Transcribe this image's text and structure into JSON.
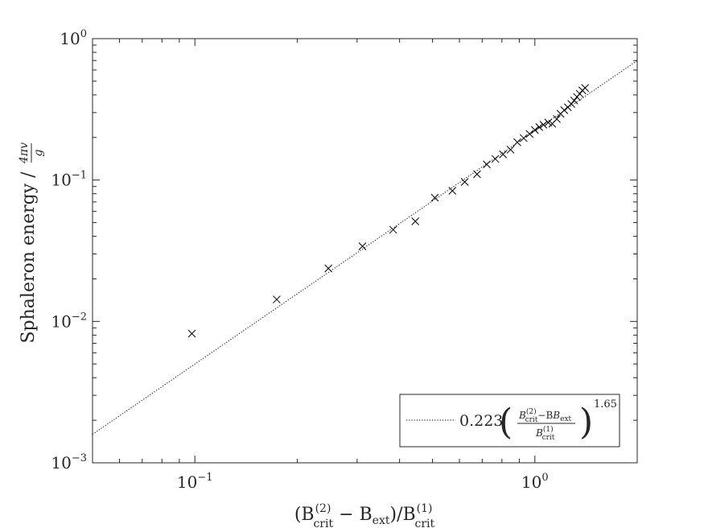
{
  "chart_data": {
    "type": "scatter",
    "x_scale": "log",
    "y_scale": "log",
    "xlim": [
      0.05,
      2.0
    ],
    "ylim": [
      0.001,
      1.0
    ],
    "grid": false,
    "legend_placement": "bottom-right",
    "x_ticks": [
      {
        "value": 0.1,
        "base": "10",
        "exp": "−1"
      },
      {
        "value": 1.0,
        "base": "10",
        "exp": "0"
      }
    ],
    "y_ticks": [
      {
        "value": 0.001,
        "base": "10",
        "exp": "−3"
      },
      {
        "value": 0.01,
        "base": "10",
        "exp": "−2"
      },
      {
        "value": 0.1,
        "base": "10",
        "exp": "−1"
      },
      {
        "value": 1.0,
        "base": "10",
        "exp": "0"
      }
    ],
    "xlabel": {
      "open": "(B",
      "sup1": "(2)",
      "sub1": "crit",
      "minus": " − B",
      "sub2": "ext",
      "mid": ")/B",
      "sup3": "(1)",
      "sub3": "crit"
    },
    "ylabel": {
      "text": "Sphaleron energy  /",
      "frac_num": "4πv",
      "frac_den": "g"
    },
    "fit": {
      "coefficient": "0.223",
      "exponent": "1.65",
      "num_B": "B",
      "num_sup": "(2)",
      "num_sub": "crit",
      "num_minus": "−B",
      "num_sub2": "ext",
      "den_B": "B",
      "den_sup": "(1)",
      "den_sub": "crit",
      "a": 0.223,
      "b": 1.65,
      "style": "dotted",
      "color": "#000000"
    },
    "series": [
      {
        "marker": "x",
        "color": "#000000",
        "points": [
          [
            0.098,
            0.0082
          ],
          [
            0.174,
            0.0143
          ],
          [
            0.247,
            0.0237
          ],
          [
            0.311,
            0.034
          ],
          [
            0.383,
            0.0445
          ],
          [
            0.445,
            0.051
          ],
          [
            0.508,
            0.075
          ],
          [
            0.572,
            0.084
          ],
          [
            0.622,
            0.097
          ],
          [
            0.676,
            0.11
          ],
          [
            0.722,
            0.129
          ],
          [
            0.765,
            0.141
          ],
          [
            0.806,
            0.152
          ],
          [
            0.848,
            0.164
          ],
          [
            0.888,
            0.185
          ],
          [
            0.927,
            0.198
          ],
          [
            0.965,
            0.212
          ],
          [
            1.0,
            0.226
          ],
          [
            1.03,
            0.237
          ],
          [
            1.06,
            0.246
          ],
          [
            1.095,
            0.255
          ],
          [
            1.125,
            0.25
          ],
          [
            1.16,
            0.27
          ],
          [
            1.19,
            0.294
          ],
          [
            1.22,
            0.312
          ],
          [
            1.25,
            0.327
          ],
          [
            1.28,
            0.345
          ],
          [
            1.305,
            0.365
          ],
          [
            1.33,
            0.387
          ],
          [
            1.355,
            0.407
          ],
          [
            1.38,
            0.43
          ],
          [
            1.405,
            0.448
          ]
        ]
      }
    ]
  }
}
